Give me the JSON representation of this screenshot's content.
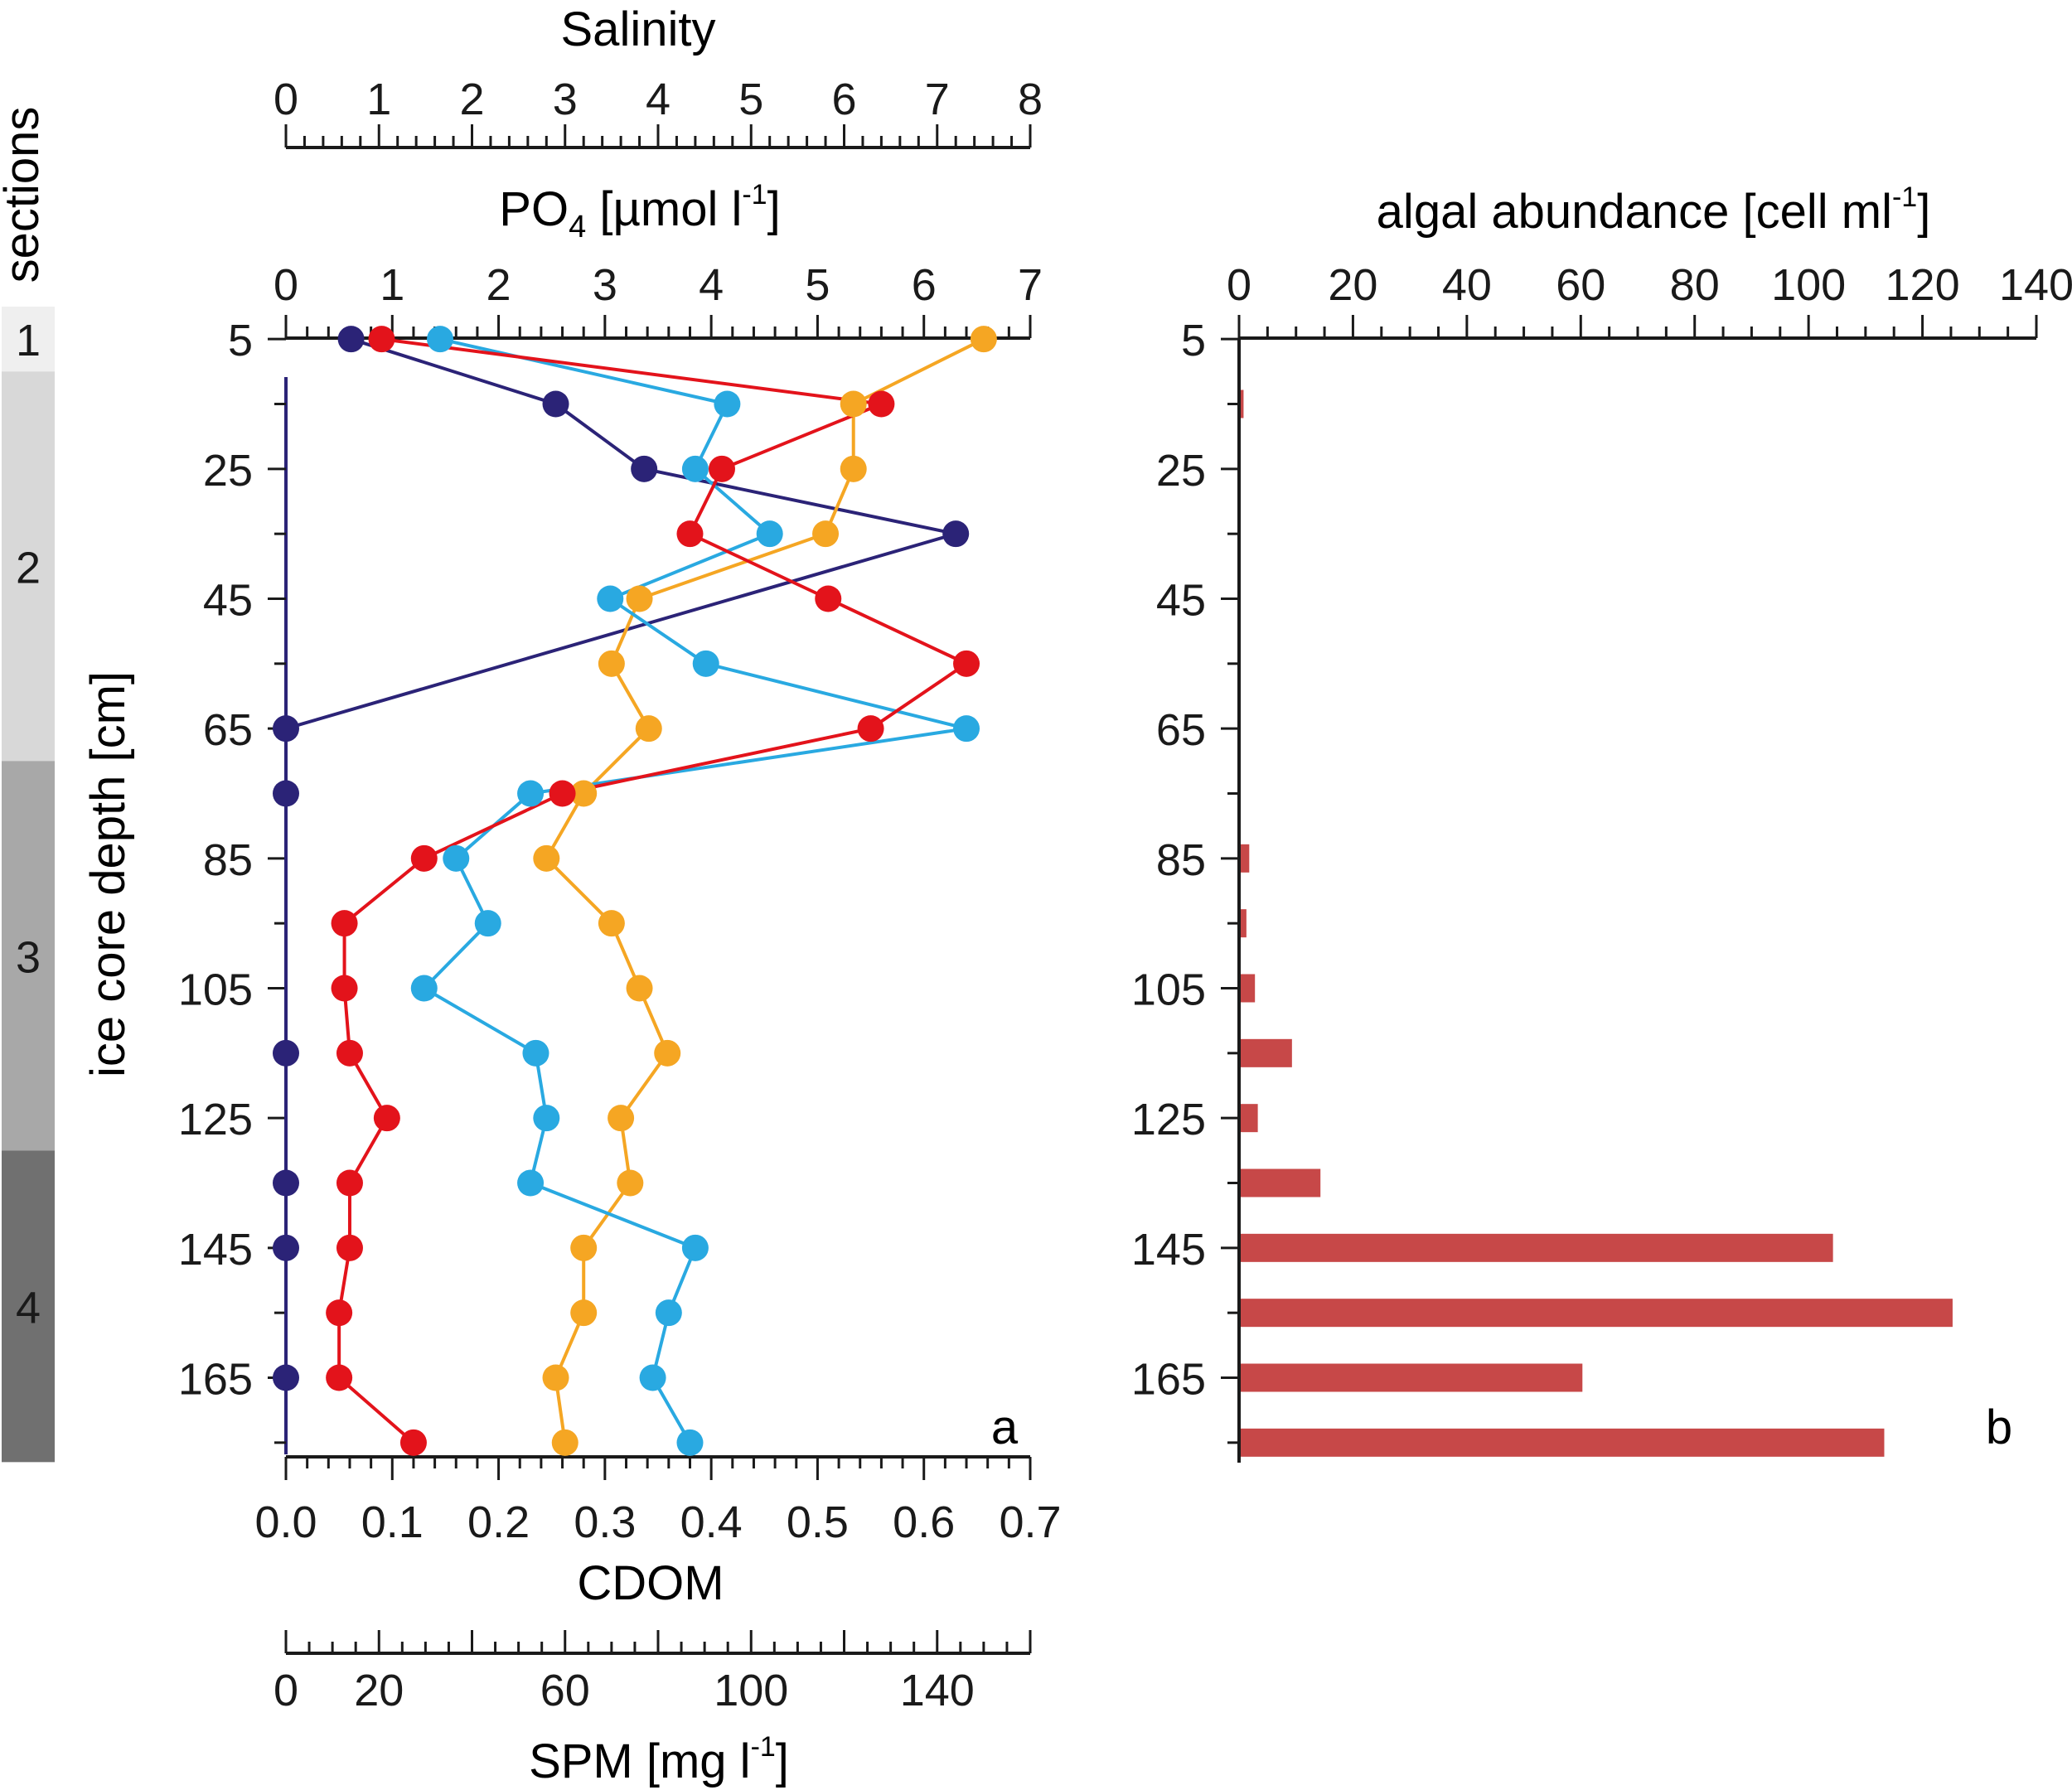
{
  "colors": {
    "salinity": "#F5A623",
    "po4": "#E3131B",
    "cdom": "#29A9E1",
    "spm": "#2B2377",
    "bars": "#C74848",
    "axis": "#1a1a1a"
  },
  "labels": {
    "salinity": "Salinity",
    "po4_main": "PO",
    "po4_sub": "4",
    "po4_unit": " [µmol l",
    "po4_sup": "-1",
    "po4_close": "]",
    "cdom": "CDOM",
    "spm_main": "SPM [mg l",
    "spm_sup": "-1",
    "spm_close": "]",
    "algae_main": "algal abundance [cell ml",
    "algae_sup": "-1",
    "algae_close": "]",
    "ylabel": "ice core depth [cm]",
    "sections_title": "sections",
    "panel_a": "a",
    "panel_b": "b"
  },
  "chart_data": [
    {
      "type": "line",
      "panel": "a",
      "ylabel": "ice core depth [cm]",
      "ylim": [
        0,
        180
      ],
      "y_ticks": [
        5,
        25,
        45,
        65,
        85,
        105,
        125,
        145,
        165
      ],
      "y_inverted": true,
      "depths": [
        5,
        15,
        25,
        35,
        45,
        55,
        65,
        75,
        85,
        95,
        105,
        115,
        125,
        135,
        145,
        155,
        165,
        175
      ],
      "axes": {
        "salinity": {
          "label": "Salinity",
          "range": [
            0,
            8
          ],
          "ticks": [
            0,
            1,
            2,
            3,
            4,
            5,
            6,
            7,
            8
          ]
        },
        "po4": {
          "label": "PO4 [µmol l-1]",
          "range": [
            0,
            7
          ],
          "ticks": [
            0,
            1,
            2,
            3,
            4,
            5,
            6,
            7
          ]
        },
        "cdom": {
          "label": "CDOM",
          "range": [
            0,
            0.7
          ],
          "ticks": [
            "0.0",
            "0.1",
            "0.2",
            "0.3",
            "0.4",
            "0.5",
            "0.6",
            "0.7"
          ]
        },
        "spm": {
          "label": "SPM [mg l-1]",
          "range": [
            0,
            160
          ],
          "ticks": [
            0,
            20,
            60,
            100,
            140
          ]
        }
      },
      "series": [
        {
          "name": "Salinity",
          "axis": "salinity",
          "points": [
            [
              7.5,
              5
            ],
            [
              6.1,
              15
            ],
            [
              6.1,
              25
            ],
            [
              5.8,
              35
            ],
            [
              3.8,
              45
            ],
            [
              3.5,
              55
            ],
            [
              3.9,
              65
            ],
            [
              3.2,
              75
            ],
            [
              2.8,
              85
            ],
            [
              3.5,
              95
            ],
            [
              3.8,
              105
            ],
            [
              4.1,
              115
            ],
            [
              3.6,
              125
            ],
            [
              3.7,
              135
            ],
            [
              3.2,
              145
            ],
            [
              3.2,
              155
            ],
            [
              2.9,
              165
            ],
            [
              3.0,
              175
            ]
          ]
        },
        {
          "name": "PO4",
          "axis": "po4",
          "points": [
            [
              0.9,
              5
            ],
            [
              5.6,
              15
            ],
            [
              4.1,
              25
            ],
            [
              3.8,
              35
            ],
            [
              5.1,
              45
            ],
            [
              6.4,
              55
            ],
            [
              5.5,
              65
            ],
            [
              2.6,
              75
            ],
            [
              1.3,
              85
            ],
            [
              0.55,
              95
            ],
            [
              0.55,
              105
            ],
            [
              0.6,
              115
            ],
            [
              0.95,
              125
            ],
            [
              0.6,
              135
            ],
            [
              0.6,
              145
            ],
            [
              0.5,
              155
            ],
            [
              0.5,
              165
            ],
            [
              1.2,
              175
            ]
          ]
        },
        {
          "name": "CDOM",
          "axis": "cdom",
          "points": [
            [
              0.145,
              5
            ],
            [
              0.415,
              15
            ],
            [
              0.385,
              25
            ],
            [
              0.455,
              35
            ],
            [
              0.305,
              45
            ],
            [
              0.395,
              55
            ],
            [
              0.64,
              65
            ],
            [
              0.23,
              75
            ],
            [
              0.16,
              85
            ],
            [
              0.19,
              95
            ],
            [
              0.13,
              105
            ],
            [
              0.235,
              115
            ],
            [
              0.245,
              125
            ],
            [
              0.23,
              135
            ],
            [
              0.385,
              145
            ],
            [
              0.36,
              155
            ],
            [
              0.345,
              165
            ],
            [
              0.38,
              175
            ]
          ]
        },
        {
          "name": "SPM",
          "axis": "spm",
          "points": [
            [
              14,
              5
            ],
            [
              58,
              15
            ],
            [
              77,
              25
            ],
            [
              144,
              35
            ],
            [
              0,
              65
            ],
            [
              0,
              75
            ],
            [
              0,
              115
            ],
            [
              0,
              135
            ],
            [
              0,
              145
            ],
            [
              0,
              165
            ]
          ]
        }
      ]
    },
    {
      "type": "bar",
      "panel": "b",
      "orientation": "horizontal",
      "xlabel": "algal abundance [cell ml-1]",
      "xlim": [
        0,
        140
      ],
      "x_ticks": [
        0,
        20,
        40,
        60,
        80,
        100,
        120,
        140
      ],
      "ylim": [
        0,
        180
      ],
      "y_ticks": [
        5,
        25,
        45,
        65,
        85,
        105,
        125,
        145,
        165
      ],
      "categories": [
        5,
        15,
        25,
        35,
        45,
        55,
        65,
        75,
        85,
        95,
        105,
        115,
        125,
        135,
        145,
        155,
        165,
        175
      ],
      "values": [
        0,
        0.5,
        0,
        0,
        0,
        0,
        0,
        0,
        1.5,
        1,
        2.5,
        9,
        3,
        14,
        104,
        125,
        60,
        113
      ]
    }
  ],
  "sections": [
    {
      "label": "1",
      "from": 0,
      "to": 10,
      "color": "#EFEFEF"
    },
    {
      "label": "2",
      "from": 10,
      "to": 70,
      "color": "#D8D8D8"
    },
    {
      "label": "3",
      "from": 70,
      "to": 130,
      "color": "#A8A8A8"
    },
    {
      "label": "4",
      "from": 130,
      "to": 178,
      "color": "#707070"
    }
  ]
}
